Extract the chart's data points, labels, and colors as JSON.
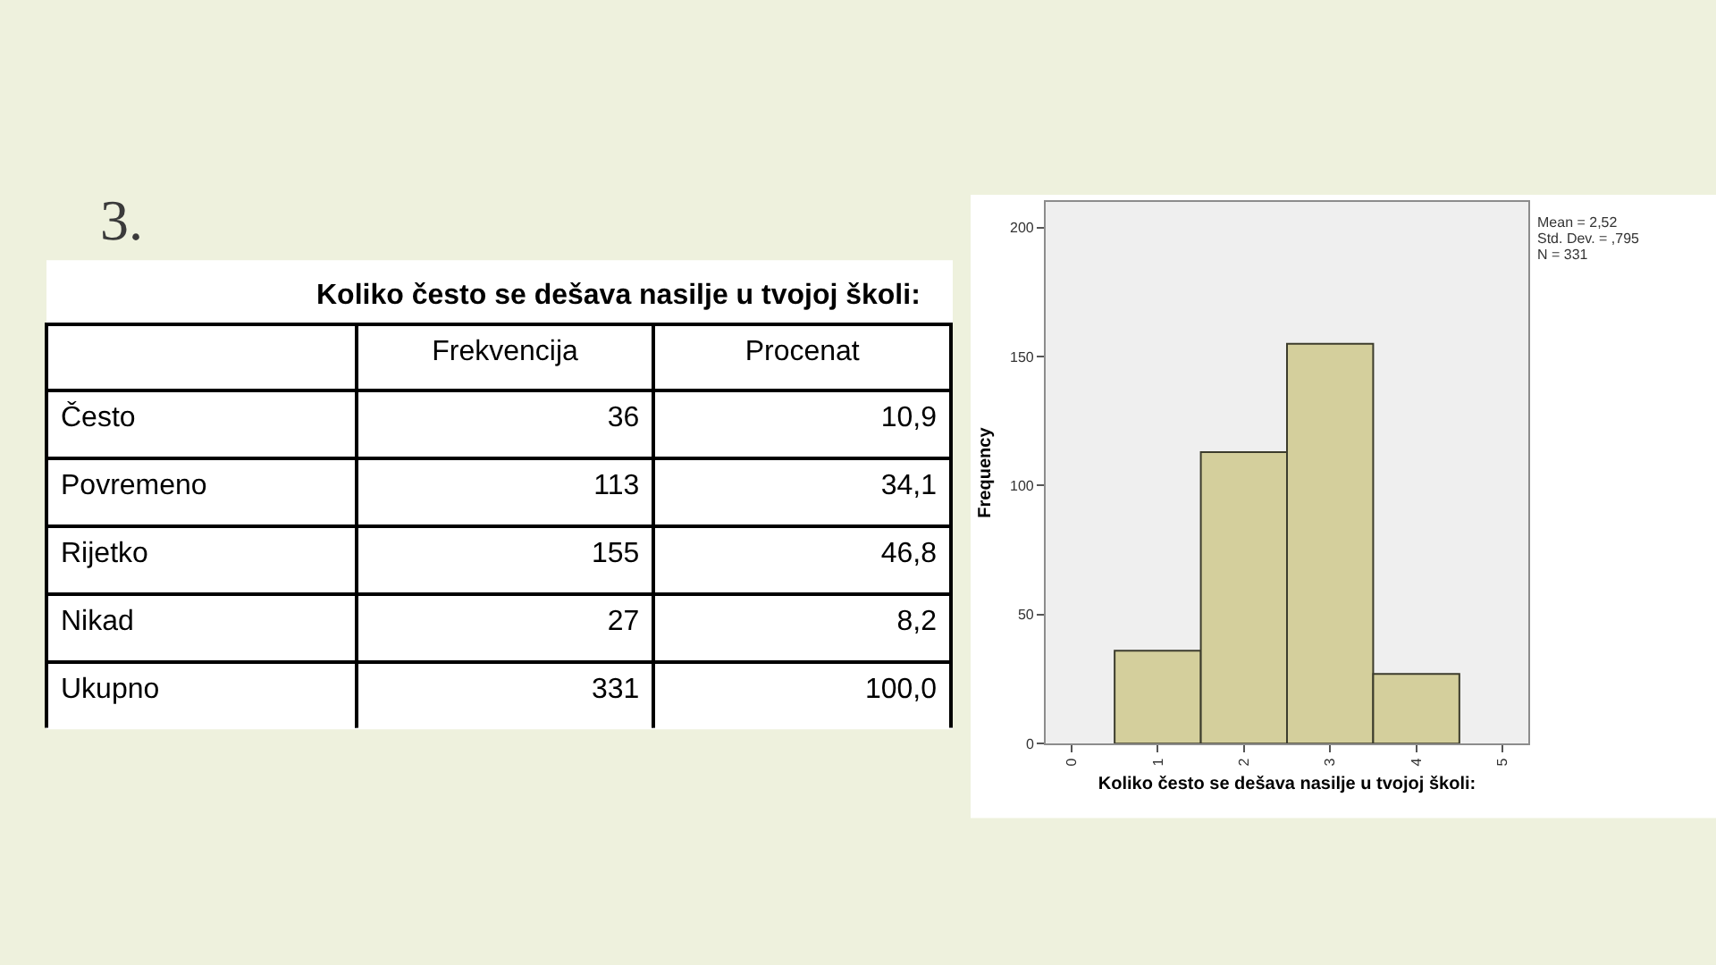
{
  "chart_data": [
    {
      "type": "other",
      "title": "Koliko često se dešava nasilje u tvojoj školi:",
      "annotations": [
        "3."
      ],
      "categories": [
        "Često",
        "Povremeno",
        "Rijetko",
        "Nikad",
        "Ukupno"
      ],
      "series": [
        {
          "name": "Frekvencija",
          "values": [
            36,
            113,
            155,
            27,
            331
          ],
          "value_labels": [
            "36",
            "113",
            "155",
            "27",
            "331"
          ]
        },
        {
          "name": "Procenat",
          "values": [
            10.9,
            34.1,
            46.8,
            8.2,
            100.0
          ],
          "value_labels": [
            "10,9",
            "34,1",
            "46,8",
            "8,2",
            "100,0"
          ]
        }
      ]
    },
    {
      "type": "histogram",
      "bins": [
        0.5,
        1.5,
        2.5,
        3.5,
        4.5
      ],
      "values": [
        36,
        113,
        155,
        27
      ],
      "color": "#d4cf9c",
      "xlabel": "Koliko često se dešava nasilje u tvojoj školi:",
      "ylabel": "Frequency",
      "xlim": [
        -0.3,
        5.3
      ],
      "xticks": [
        0,
        1,
        2,
        3,
        4,
        5
      ],
      "ylim": [
        0,
        210
      ],
      "yticks": [
        0,
        50,
        100,
        150,
        200
      ],
      "grid": false,
      "annotations": [
        "Mean = 2,52",
        "Std. Dev. = ,795",
        "N = 331"
      ]
    }
  ]
}
